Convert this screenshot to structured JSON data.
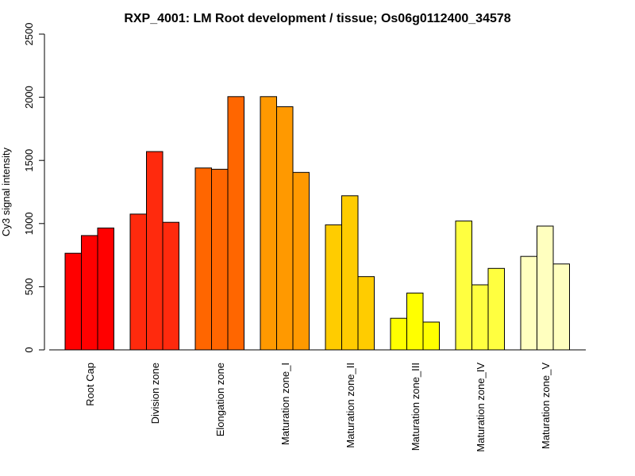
{
  "chart_data": {
    "type": "bar",
    "title": "RXP_4001: LM Root development / tissue; Os06g0112400_34578",
    "xlabel": "",
    "ylabel": "Cy3 signal intensity",
    "ylim": [
      0,
      2500
    ],
    "yticks": [
      0,
      500,
      1000,
      1500,
      2000,
      2500
    ],
    "grid": false,
    "groups": [
      {
        "label": "Root Cap",
        "color": "#FF0000",
        "values": [
          765,
          905,
          965
        ]
      },
      {
        "label": "Division zone",
        "color": "#FF2A0D",
        "values": [
          1075,
          1570,
          1010
        ]
      },
      {
        "label": "Elongation zone",
        "color": "#FF6600",
        "values": [
          1440,
          1430,
          2005
        ]
      },
      {
        "label": "Maturation zone_I",
        "color": "#FF9900",
        "values": [
          2005,
          1925,
          1405
        ]
      },
      {
        "label": "Maturation zone_II",
        "color": "#FFCC00",
        "values": [
          990,
          1220,
          580
        ]
      },
      {
        "label": "Maturation zone_III",
        "color": "#FFFF00",
        "values": [
          250,
          450,
          220
        ]
      },
      {
        "label": "Maturation zone_IV",
        "color": "#FFFF40",
        "values": [
          1020,
          515,
          645
        ]
      },
      {
        "label": "Maturation zone_V",
        "color": "#FFFFBF",
        "values": [
          740,
          980,
          680
        ]
      }
    ]
  }
}
